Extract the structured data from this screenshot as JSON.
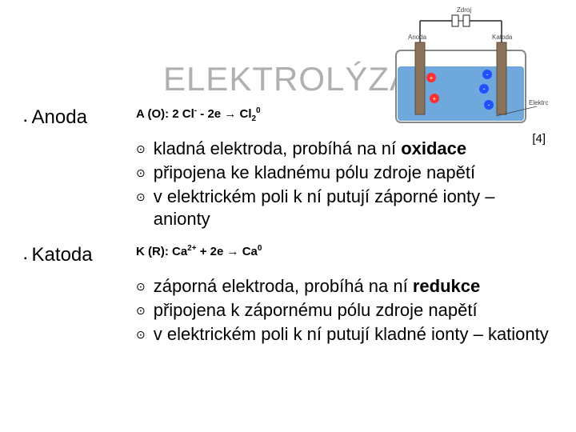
{
  "title": "ELEKTROLÝZA",
  "ref": "[4]",
  "anoda": {
    "label": "Anoda",
    "equation_html": "<b>A (O): 2 Cl<sup>-</sup> - 2e <span class='arrow'>→</span> Cl<sub>2</sub><sup>0</sup></b>",
    "bullets": [
      "kladná elektroda, probíhá na ní <b>oxidace</b>",
      "připojena ke kladnému pólu zdroje napětí",
      "v elektrickém poli k ní putují záporné ionty – anionty"
    ]
  },
  "katoda": {
    "label": "Katoda",
    "equation_html": "<b>K (R): Ca<sup>2+</sup> + 2e <span class='arrow'>→</span> Ca<sup>0</sup></b>",
    "bullets": [
      "záporná elektroda, probíhá na ní <b>redukce</b>",
      "připojena k zápornému pólu zdroje napětí",
      "v elektrickém poli k ní putují kladné ionty – kationty"
    ]
  },
  "diagram": {
    "bg": "#ffffff",
    "solution_color": "#6fa8dc",
    "container_stroke": "#888888",
    "electrode_color": "#8a735b",
    "wire_color": "#222222",
    "cation_color": "#ff3030",
    "anion_color": "#2050ff",
    "label_color": "#444444",
    "labels": {
      "zdroj": "Zdroj",
      "anoda": "Anoda",
      "katoda": "Katoda",
      "elektrolyt": "Elektrolyt"
    }
  },
  "colors": {
    "title_color": "#b0b0b0",
    "text_color": "#000000",
    "bg": "#ffffff"
  }
}
